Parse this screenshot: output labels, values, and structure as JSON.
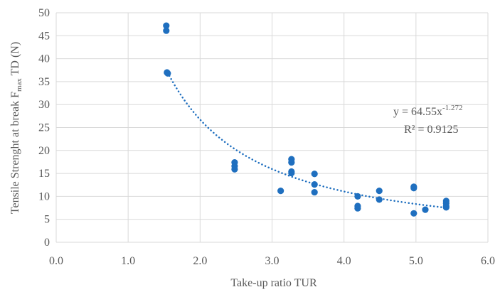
{
  "chart_data": {
    "type": "scatter",
    "xlabel": "Take-up ratio TUR",
    "ylabel_parts": [
      "Tensile Strenght at break F",
      "max",
      " TD (N)"
    ],
    "xlim": [
      0,
      6
    ],
    "ylim": [
      0,
      50
    ],
    "x_ticks": [
      "0.0",
      "1.0",
      "2.0",
      "3.0",
      "4.0",
      "5.0",
      "6.0"
    ],
    "y_ticks": [
      "0",
      "5",
      "10",
      "15",
      "20",
      "25",
      "30",
      "35",
      "40",
      "45",
      "50"
    ],
    "grid": true,
    "marker_color": "#1f6fbf",
    "trend_color": "#1f6fbf",
    "points": [
      {
        "x": 1.53,
        "y": 47.2
      },
      {
        "x": 1.53,
        "y": 46.1
      },
      {
        "x": 1.54,
        "y": 37.0
      },
      {
        "x": 1.55,
        "y": 36.8
      },
      {
        "x": 2.48,
        "y": 17.4
      },
      {
        "x": 2.48,
        "y": 16.6
      },
      {
        "x": 2.48,
        "y": 15.9
      },
      {
        "x": 3.12,
        "y": 11.2
      },
      {
        "x": 3.27,
        "y": 18.1
      },
      {
        "x": 3.27,
        "y": 17.4
      },
      {
        "x": 3.27,
        "y": 15.4
      },
      {
        "x": 3.27,
        "y": 15.1
      },
      {
        "x": 3.59,
        "y": 14.9
      },
      {
        "x": 3.59,
        "y": 12.6
      },
      {
        "x": 3.59,
        "y": 10.9
      },
      {
        "x": 4.19,
        "y": 10.0
      },
      {
        "x": 4.19,
        "y": 7.9
      },
      {
        "x": 4.19,
        "y": 7.4
      },
      {
        "x": 4.49,
        "y": 11.2
      },
      {
        "x": 4.49,
        "y": 9.3
      },
      {
        "x": 4.97,
        "y": 12.1
      },
      {
        "x": 4.97,
        "y": 11.8
      },
      {
        "x": 4.97,
        "y": 6.3
      },
      {
        "x": 5.13,
        "y": 7.1
      },
      {
        "x": 5.42,
        "y": 9.0
      },
      {
        "x": 5.42,
        "y": 8.5
      },
      {
        "x": 5.42,
        "y": 7.9
      },
      {
        "x": 5.42,
        "y": 7.6
      }
    ],
    "trendline": {
      "type": "power",
      "a": 64.55,
      "b": -1.272,
      "x_range": [
        1.55,
        5.42
      ],
      "equation_base": "y = 64.55x",
      "equation_exp": "-1.272",
      "r2": "R² = 0.9125"
    }
  }
}
